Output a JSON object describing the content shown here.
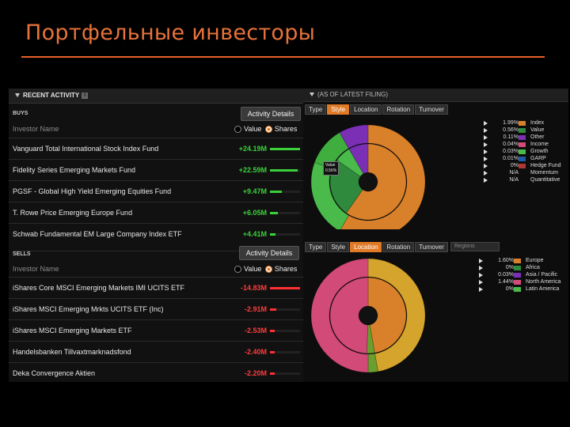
{
  "slide": {
    "title": "Портфельные инвесторы"
  },
  "left_panel": {
    "header": "RECENT ACTIVITY",
    "buys": {
      "label": "BUYS",
      "button": "Activity Details",
      "col_head": "Investor Name",
      "radio_value": "Value",
      "radio_shares": "Shares",
      "selected": "Shares",
      "rows": [
        {
          "name": "Vanguard Total International Stock Index Fund",
          "value": "+24.19M",
          "level": 1.0
        },
        {
          "name": "Fidelity Series Emerging Markets Fund",
          "value": "+22.59M",
          "level": 0.93
        },
        {
          "name": "PGSF - Global High Yield Emerging Equities Fund",
          "value": "+9.47M",
          "level": 0.39
        },
        {
          "name": "T. Rowe Price Emerging Europe Fund",
          "value": "+6.05M",
          "level": 0.25
        },
        {
          "name": "Schwab Fundamental EM Large Company Index ETF",
          "value": "+4.41M",
          "level": 0.18
        }
      ]
    },
    "sells": {
      "label": "SELLS",
      "button": "Activity Details",
      "col_head": "Investor Name",
      "radio_value": "Value",
      "radio_shares": "Shares",
      "selected": "Shares",
      "rows": [
        {
          "name": "iShares Core MSCI Emerging Markets IMI UCITS ETF",
          "value": "-14.83M",
          "level": 1.0
        },
        {
          "name": "iShares MSCI Emerging Mrkts UCITS ETF (Inc)",
          "value": "-2.91M",
          "level": 0.2
        },
        {
          "name": "iShares MSCI Emerging Markets ETF",
          "value": "-2.53M",
          "level": 0.17
        },
        {
          "name": "Handelsbanken Tillvaxtmarknadsfond",
          "value": "-2.40M",
          "level": 0.16
        },
        {
          "name": "Deka Convergence Aktien",
          "value": "-2.20M",
          "level": 0.15
        }
      ]
    }
  },
  "right_panel": {
    "header": "(AS OF LATEST FILING)",
    "top": {
      "tabs": [
        "Type",
        "Style",
        "Location",
        "Rotation",
        "Turnover"
      ],
      "active_tab": "Style",
      "tooltip": [
        "Value",
        "0.56%"
      ],
      "legend": [
        {
          "pct": "1.99%",
          "label": "Index",
          "color": "#d9802b"
        },
        {
          "pct": "0.56%",
          "label": "Value",
          "color": "#2f8a3d"
        },
        {
          "pct": "0.11%",
          "label": "Other",
          "color": "#7a2fb5"
        },
        {
          "pct": "0.04%",
          "label": "Income",
          "color": "#d24a77"
        },
        {
          "pct": "0.03%",
          "label": "Growth",
          "color": "#4aba4a"
        },
        {
          "pct": "0.01%",
          "label": "GARP",
          "color": "#1e5aa8"
        },
        {
          "pct": "0%",
          "label": "Hedge Fund",
          "color": "#b03535"
        },
        {
          "pct": "N/A",
          "label": "Momentum",
          "color": ""
        },
        {
          "pct": "N/A",
          "label": "Quantitative",
          "color": ""
        }
      ]
    },
    "bottom": {
      "tabs": [
        "Type",
        "Style",
        "Location",
        "Rotation",
        "Turnover"
      ],
      "active_tab": "Location",
      "dropdown": "Regions",
      "legend": [
        {
          "pct": "1.60%",
          "label": "Europe",
          "color": "#d9802b"
        },
        {
          "pct": "0%",
          "label": "Africa",
          "color": "#2f8a3d"
        },
        {
          "pct": "0.03%",
          "label": "Asia / Pacific",
          "color": "#7a2fb5"
        },
        {
          "pct": "1.44%",
          "label": "North America",
          "color": "#d24a77"
        },
        {
          "pct": "0%",
          "label": "Latin America",
          "color": "#4aba4a"
        }
      ]
    }
  }
}
